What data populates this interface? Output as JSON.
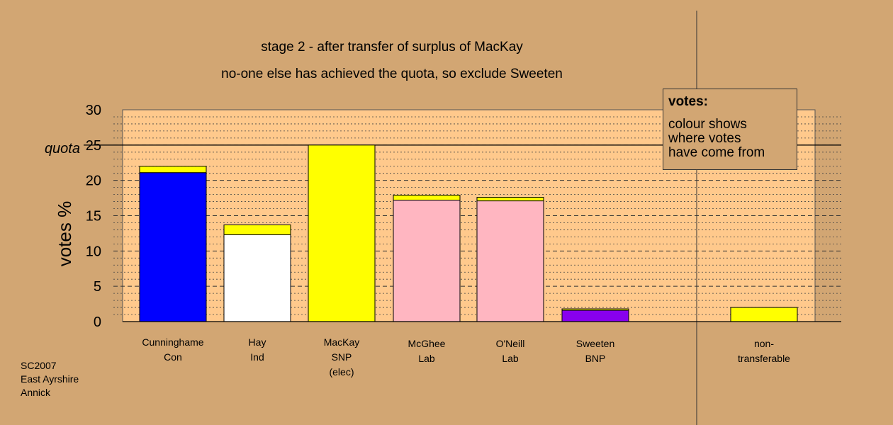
{
  "chart_data": {
    "type": "bar",
    "title": "stage 2 - after transfer of surplus of MacKay",
    "subtitle": "no-one else has achieved the quota, so exclude Sweeten",
    "ylabel": "votes %",
    "ylim": [
      0,
      30
    ],
    "yticks": [
      "0",
      "5",
      "10",
      "15",
      "20",
      "25",
      "30"
    ],
    "quota": {
      "label": "quota",
      "value": 25
    },
    "categories": [
      [
        "Cunninghame",
        "Con"
      ],
      [
        "Hay",
        "Ind"
      ],
      [
        "MacKay",
        "SNP",
        "(elec)"
      ],
      [
        "McGhee",
        "Lab"
      ],
      [
        "O'Neill",
        "Lab"
      ],
      [
        "Sweeten",
        "BNP"
      ],
      [
        "non-",
        "transferable"
      ]
    ],
    "series": [
      {
        "values": [
          21.1,
          12.3,
          0,
          17.2,
          17.1,
          1.6,
          0
        ],
        "colors": [
          "#0000ff",
          "#ffffff",
          "#ffff00",
          "#ffb6c1",
          "#ffb6c1",
          "#8800ee",
          "#ffff00"
        ]
      },
      {
        "values": [
          0.9,
          1.4,
          25.0,
          0.7,
          0.5,
          0.2,
          2.0
        ],
        "colors": [
          "#ffff00",
          "#ffff00",
          "#ffff00",
          "#ffff00",
          "#ffff00",
          "#ffff00",
          "#ffff00"
        ]
      }
    ],
    "grid": true,
    "legend_position": "top-right"
  },
  "legend": {
    "title": "votes:",
    "lines": [
      "colour shows",
      "where votes",
      "have come from"
    ]
  },
  "source": [
    "SC2007",
    "East Ayrshire",
    "Annick"
  ],
  "colors": {
    "background": "#d2a673",
    "plot_area": "#ffc98c"
  }
}
